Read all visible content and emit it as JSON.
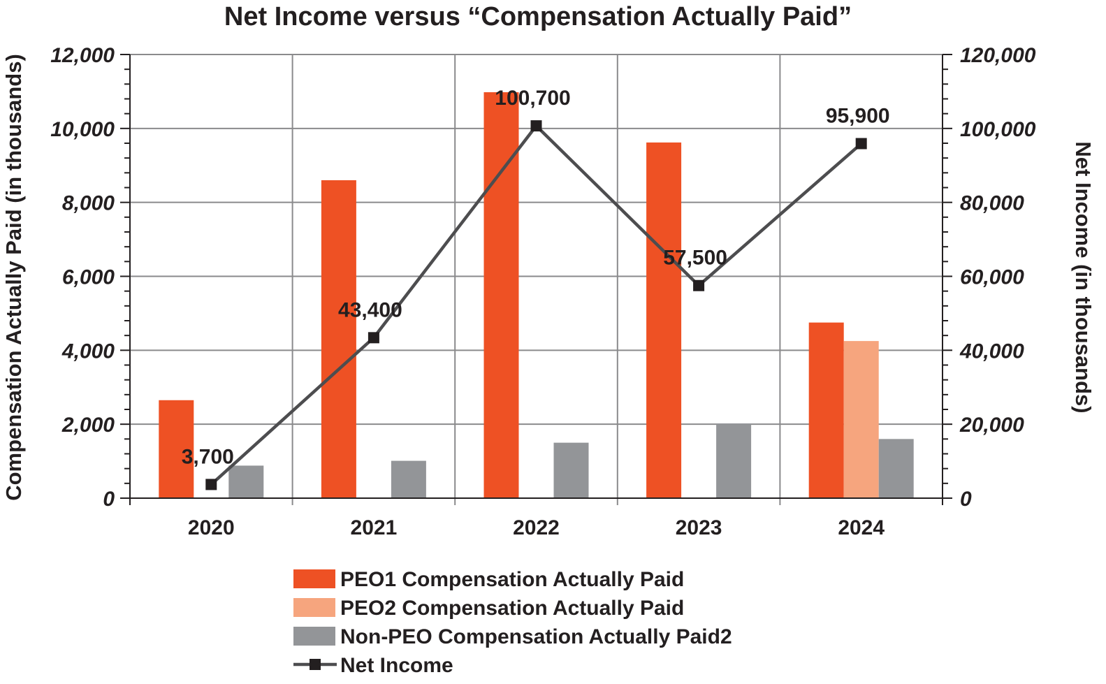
{
  "chart_data": {
    "type": "bar",
    "title": "Net Income versus “Compensation Actually Paid”",
    "ylabel": "Compensation Actually Paid (in thousands)",
    "y2label": "Net Income (in thousands)",
    "categories": [
      "2020",
      "2021",
      "2022",
      "2023",
      "2024"
    ],
    "ylim": [
      0,
      12000
    ],
    "y2lim": [
      0,
      120000
    ],
    "yticks": [
      "0",
      "2,000",
      "4,000",
      "6,000",
      "8,000",
      "10,000",
      "12,000"
    ],
    "y2ticks": [
      "0",
      "20,000",
      "40,000",
      "60,000",
      "80,000",
      "100,000",
      "120,000"
    ],
    "series": [
      {
        "name": "PEO1 Compensation Actually Paid",
        "type": "bar",
        "axis": "left",
        "color": "#ee5124",
        "values": [
          2650,
          8600,
          10980,
          9620,
          4750
        ]
      },
      {
        "name": "PEO2 Compensation Actually Paid",
        "type": "bar",
        "axis": "left",
        "color": "#f6a57e",
        "values": [
          null,
          null,
          null,
          null,
          4250
        ]
      },
      {
        "name": "Non-PEO Compensation Actually Paid2",
        "type": "bar",
        "axis": "left",
        "color": "#939598",
        "values": [
          880,
          1010,
          1500,
          2020,
          1600
        ]
      },
      {
        "name": "Net Income",
        "type": "line",
        "axis": "right",
        "color": "#4d4d4f",
        "values": [
          3700,
          43400,
          100700,
          57500,
          95900
        ],
        "labels": [
          "3,700",
          "43,400",
          "100,700",
          "57,500",
          "95,900"
        ]
      }
    ],
    "legend": "bottom"
  }
}
